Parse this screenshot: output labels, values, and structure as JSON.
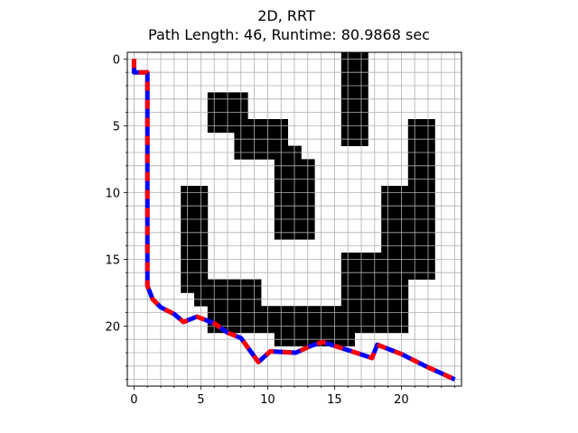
{
  "chart_data": {
    "type": "line",
    "title": "2D, RRT",
    "subtitle": "Path Length: 46, Runtime: 80.9868 sec",
    "xlabel": "",
    "ylabel": "",
    "xlim": [
      -0.5,
      24.5
    ],
    "ylim": [
      24.5,
      -0.5
    ],
    "y_inverted": true,
    "grid": true,
    "grid_step": 1,
    "x_ticks": [
      0,
      5,
      10,
      15,
      20
    ],
    "y_ticks": [
      0,
      5,
      10,
      15,
      20
    ],
    "obstacle_color": "#000000",
    "free_color": "#ffffff",
    "grid_color": "#b0b0b0",
    "obstacle_cells": [
      [
        16,
        0
      ],
      [
        17,
        0
      ],
      [
        16,
        1
      ],
      [
        17,
        1
      ],
      [
        16,
        2
      ],
      [
        17,
        2
      ],
      [
        6,
        3
      ],
      [
        7,
        3
      ],
      [
        8,
        3
      ],
      [
        16,
        3
      ],
      [
        17,
        3
      ],
      [
        6,
        4
      ],
      [
        7,
        4
      ],
      [
        8,
        4
      ],
      [
        16,
        4
      ],
      [
        17,
        4
      ],
      [
        6,
        5
      ],
      [
        7,
        5
      ],
      [
        8,
        5
      ],
      [
        9,
        5
      ],
      [
        10,
        5
      ],
      [
        11,
        5
      ],
      [
        16,
        5
      ],
      [
        17,
        5
      ],
      [
        21,
        5
      ],
      [
        22,
        5
      ],
      [
        8,
        6
      ],
      [
        9,
        6
      ],
      [
        10,
        6
      ],
      [
        11,
        6
      ],
      [
        16,
        6
      ],
      [
        17,
        6
      ],
      [
        21,
        6
      ],
      [
        22,
        6
      ],
      [
        8,
        7
      ],
      [
        9,
        7
      ],
      [
        10,
        7
      ],
      [
        11,
        7
      ],
      [
        12,
        7
      ],
      [
        21,
        7
      ],
      [
        22,
        7
      ],
      [
        11,
        8
      ],
      [
        12,
        8
      ],
      [
        13,
        8
      ],
      [
        21,
        8
      ],
      [
        22,
        8
      ],
      [
        11,
        9
      ],
      [
        12,
        9
      ],
      [
        13,
        9
      ],
      [
        21,
        9
      ],
      [
        22,
        9
      ],
      [
        4,
        10
      ],
      [
        5,
        10
      ],
      [
        11,
        10
      ],
      [
        12,
        10
      ],
      [
        13,
        10
      ],
      [
        19,
        10
      ],
      [
        20,
        10
      ],
      [
        21,
        10
      ],
      [
        22,
        10
      ],
      [
        4,
        11
      ],
      [
        5,
        11
      ],
      [
        11,
        11
      ],
      [
        12,
        11
      ],
      [
        13,
        11
      ],
      [
        19,
        11
      ],
      [
        20,
        11
      ],
      [
        21,
        11
      ],
      [
        22,
        11
      ],
      [
        4,
        12
      ],
      [
        5,
        12
      ],
      [
        11,
        12
      ],
      [
        12,
        12
      ],
      [
        13,
        12
      ],
      [
        19,
        12
      ],
      [
        20,
        12
      ],
      [
        21,
        12
      ],
      [
        22,
        12
      ],
      [
        4,
        13
      ],
      [
        5,
        13
      ],
      [
        11,
        13
      ],
      [
        12,
        13
      ],
      [
        13,
        13
      ],
      [
        19,
        13
      ],
      [
        20,
        13
      ],
      [
        21,
        13
      ],
      [
        22,
        13
      ],
      [
        4,
        14
      ],
      [
        5,
        14
      ],
      [
        19,
        14
      ],
      [
        20,
        14
      ],
      [
        21,
        14
      ],
      [
        22,
        14
      ],
      [
        4,
        15
      ],
      [
        5,
        15
      ],
      [
        16,
        15
      ],
      [
        17,
        15
      ],
      [
        18,
        15
      ],
      [
        19,
        15
      ],
      [
        20,
        15
      ],
      [
        21,
        15
      ],
      [
        22,
        15
      ],
      [
        4,
        16
      ],
      [
        5,
        16
      ],
      [
        16,
        16
      ],
      [
        17,
        16
      ],
      [
        18,
        16
      ],
      [
        19,
        16
      ],
      [
        20,
        16
      ],
      [
        21,
        16
      ],
      [
        22,
        16
      ],
      [
        4,
        17
      ],
      [
        5,
        17
      ],
      [
        6,
        17
      ],
      [
        7,
        17
      ],
      [
        8,
        17
      ],
      [
        9,
        17
      ],
      [
        16,
        17
      ],
      [
        17,
        17
      ],
      [
        18,
        17
      ],
      [
        19,
        17
      ],
      [
        20,
        17
      ],
      [
        5,
        18
      ],
      [
        6,
        18
      ],
      [
        7,
        18
      ],
      [
        8,
        18
      ],
      [
        9,
        18
      ],
      [
        16,
        18
      ],
      [
        17,
        18
      ],
      [
        18,
        18
      ],
      [
        19,
        18
      ],
      [
        20,
        18
      ],
      [
        6,
        19
      ],
      [
        7,
        19
      ],
      [
        8,
        19
      ],
      [
        9,
        19
      ],
      [
        10,
        19
      ],
      [
        11,
        19
      ],
      [
        12,
        19
      ],
      [
        13,
        19
      ],
      [
        14,
        19
      ],
      [
        15,
        19
      ],
      [
        16,
        19
      ],
      [
        17,
        19
      ],
      [
        18,
        19
      ],
      [
        19,
        19
      ],
      [
        20,
        19
      ],
      [
        6,
        20
      ],
      [
        7,
        20
      ],
      [
        8,
        20
      ],
      [
        9,
        20
      ],
      [
        10,
        20
      ],
      [
        11,
        20
      ],
      [
        12,
        20
      ],
      [
        13,
        20
      ],
      [
        14,
        20
      ],
      [
        15,
        20
      ],
      [
        16,
        20
      ],
      [
        17,
        20
      ],
      [
        18,
        20
      ],
      [
        19,
        20
      ],
      [
        20,
        20
      ],
      [
        11,
        21
      ],
      [
        12,
        21
      ],
      [
        13,
        21
      ],
      [
        14,
        21
      ],
      [
        15,
        21
      ],
      [
        16,
        21
      ]
    ],
    "series": [
      {
        "style": "dashed",
        "colors": [
          "#0000ff",
          "#ff0000"
        ],
        "points": [
          [
            0,
            0
          ],
          [
            0,
            1
          ],
          [
            1,
            1
          ],
          [
            1,
            17
          ],
          [
            1.4,
            18
          ],
          [
            2,
            18.6
          ],
          [
            3,
            19.1
          ],
          [
            3.7,
            19.7
          ],
          [
            4.7,
            19.3
          ],
          [
            6,
            19.8
          ],
          [
            7,
            20.5
          ],
          [
            8,
            20.9
          ],
          [
            9.3,
            22.7
          ],
          [
            10.2,
            21.9
          ],
          [
            12.1,
            22
          ],
          [
            13.2,
            21.5
          ],
          [
            14.1,
            21.2
          ],
          [
            16.3,
            21.9
          ],
          [
            17.8,
            22.4
          ],
          [
            18.2,
            21.4
          ],
          [
            20,
            22.1
          ],
          [
            21.8,
            23
          ],
          [
            24,
            24
          ]
        ]
      }
    ]
  }
}
